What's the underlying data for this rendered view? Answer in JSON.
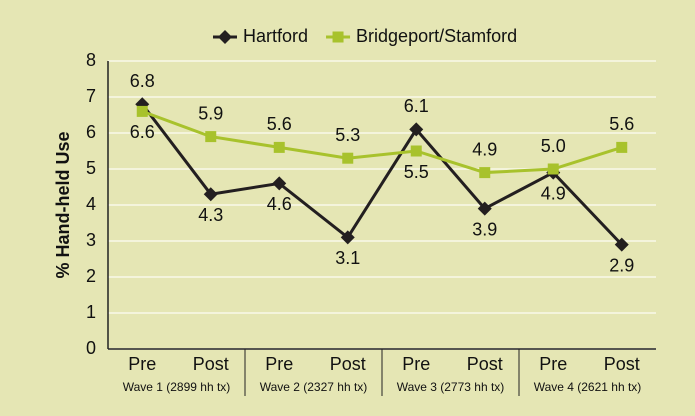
{
  "chart_data": {
    "type": "line",
    "y_label": "% Hand-held Use",
    "categories": [
      "Pre",
      "Post",
      "Pre",
      "Post",
      "Pre",
      "Post",
      "Pre",
      "Post"
    ],
    "groups": [
      "Wave 1 (2899 hh tx)",
      "Wave 2 (2327 hh tx)",
      "Wave 3 (2773 hh tx)",
      "Wave 4 (2621 hh tx)"
    ],
    "series": [
      {
        "name": "Hartford",
        "color": "#231f20",
        "marker": "diamond",
        "values": [
          6.8,
          4.3,
          4.6,
          3.1,
          6.1,
          3.9,
          4.9,
          2.9
        ]
      },
      {
        "name": "Bridgeport/Stamford",
        "color": "#a8c22c",
        "marker": "square",
        "values": [
          6.6,
          5.9,
          5.6,
          5.3,
          5.5,
          4.9,
          5.0,
          5.6
        ],
        "value_labels": [
          "6.6",
          "5.9",
          "5.6",
          "5.3",
          "5.5",
          "4.9",
          "5.0",
          "5.6"
        ]
      }
    ],
    "ylim": [
      0,
      8
    ],
    "yticks": [
      0,
      1,
      2,
      3,
      4,
      5,
      6,
      7,
      8
    ],
    "grid": true,
    "legend": "top"
  }
}
